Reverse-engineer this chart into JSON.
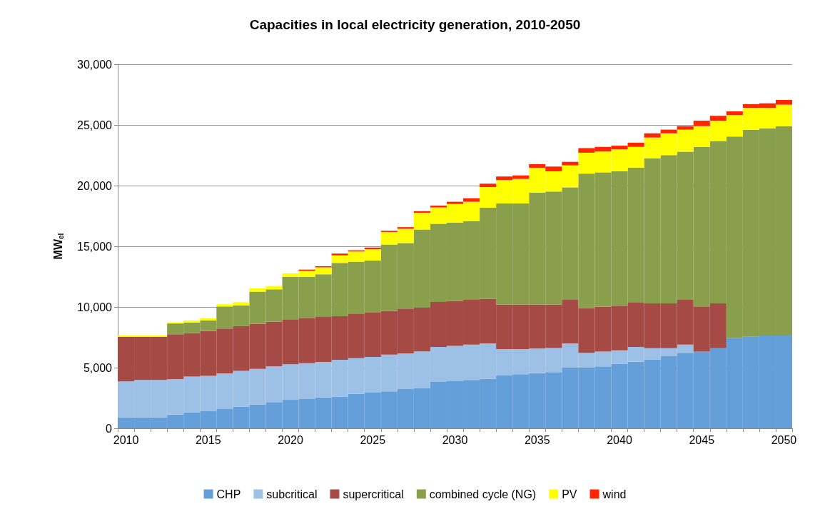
{
  "chart_data": {
    "type": "bar",
    "stacked": true,
    "title": "Capacities in local electricity generation, 2010-2050",
    "ylabel": "MW$_{el}$",
    "categories": [
      "2010",
      null,
      null,
      null,
      null,
      "2015",
      null,
      null,
      null,
      null,
      "2020",
      null,
      null,
      null,
      null,
      "2025",
      null,
      null,
      null,
      null,
      "2030",
      null,
      null,
      null,
      null,
      "2035",
      null,
      null,
      null,
      null,
      "2040",
      null,
      null,
      null,
      null,
      "2045",
      null,
      null,
      null,
      null,
      "2050"
    ],
    "series": [
      {
        "name": "CHP",
        "color": "#659fd9",
        "values": [
          900,
          900,
          900,
          1130,
          1310,
          1410,
          1590,
          1790,
          1960,
          2160,
          2350,
          2450,
          2550,
          2600,
          2840,
          2940,
          3040,
          3240,
          3330,
          3830,
          3880,
          3980,
          4080,
          4350,
          4450,
          4550,
          4630,
          5000,
          5000,
          5100,
          5300,
          5490,
          5650,
          5940,
          6220,
          6320,
          6610,
          7450,
          7550,
          7650,
          7650
        ]
      },
      {
        "name": "subcritical",
        "color": "#9dc0e7",
        "values": [
          2970,
          3080,
          3080,
          2930,
          2950,
          2920,
          2940,
          2940,
          2940,
          2940,
          2930,
          2920,
          2920,
          3040,
          2940,
          2940,
          3040,
          2940,
          3010,
          2880,
          2920,
          2920,
          2920,
          2180,
          2080,
          2020,
          1990,
          2000,
          1220,
          1220,
          1130,
          1220,
          960,
          670,
          680,
          0,
          0,
          0,
          0,
          0,
          0
        ]
      },
      {
        "name": "supercritical",
        "color": "#a64a45",
        "values": [
          3680,
          3570,
          3570,
          3690,
          3590,
          3690,
          3690,
          3690,
          3710,
          3690,
          3700,
          3690,
          3710,
          3590,
          3670,
          3690,
          3590,
          3690,
          3610,
          3700,
          3690,
          3690,
          3670,
          3670,
          3670,
          3630,
          3580,
          3590,
          3690,
          3690,
          3670,
          3690,
          3680,
          3680,
          3690,
          3680,
          3680,
          0,
          0,
          0,
          0
        ]
      },
      {
        "name": "combined cycle (NG)",
        "color": "#8a9f4c",
        "values": [
          0,
          0,
          0,
          890,
          860,
          880,
          1820,
          1710,
          2650,
          2660,
          3510,
          3430,
          3510,
          4400,
          4280,
          4250,
          5470,
          5400,
          6430,
          6450,
          6470,
          6470,
          7510,
          8330,
          8330,
          9210,
          9310,
          9270,
          11080,
          11080,
          11080,
          11080,
          11960,
          12220,
          12210,
          13180,
          13380,
          16590,
          17060,
          17060,
          17250
        ]
      },
      {
        "name": "PV",
        "color": "#ffff00",
        "values": [
          100,
          100,
          100,
          100,
          180,
          180,
          180,
          270,
          270,
          280,
          280,
          490,
          570,
          620,
          840,
          950,
          1040,
          1170,
          1370,
          1340,
          1530,
          1610,
          1700,
          1920,
          2020,
          2060,
          1670,
          1810,
          1720,
          1720,
          1820,
          1710,
          1710,
          1800,
          1810,
          1720,
          1680,
          1780,
          1800,
          1700,
          1770
        ]
      },
      {
        "name": "wind",
        "color": "#ff2500",
        "values": [
          0,
          0,
          0,
          0,
          0,
          0,
          0,
          0,
          0,
          0,
          0,
          100,
          100,
          150,
          100,
          130,
          100,
          140,
          140,
          150,
          180,
          290,
          280,
          300,
          290,
          300,
          390,
          290,
          380,
          380,
          290,
          350,
          350,
          300,
          290,
          450,
          400,
          300,
          300,
          370,
          390
        ]
      }
    ],
    "ylim": [
      0,
      30000
    ],
    "yticks": [
      0,
      {
        "value": 5000,
        "label": "5,000"
      },
      {
        "value": 10000,
        "label": "10,000"
      },
      {
        "value": 15000,
        "label": "15,000"
      },
      {
        "value": 20000,
        "label": "20,000"
      },
      {
        "value": 25000,
        "label": "25,000"
      },
      {
        "value": 30000,
        "label": "30,000"
      }
    ],
    "grid": "y",
    "legend": "bottom"
  }
}
